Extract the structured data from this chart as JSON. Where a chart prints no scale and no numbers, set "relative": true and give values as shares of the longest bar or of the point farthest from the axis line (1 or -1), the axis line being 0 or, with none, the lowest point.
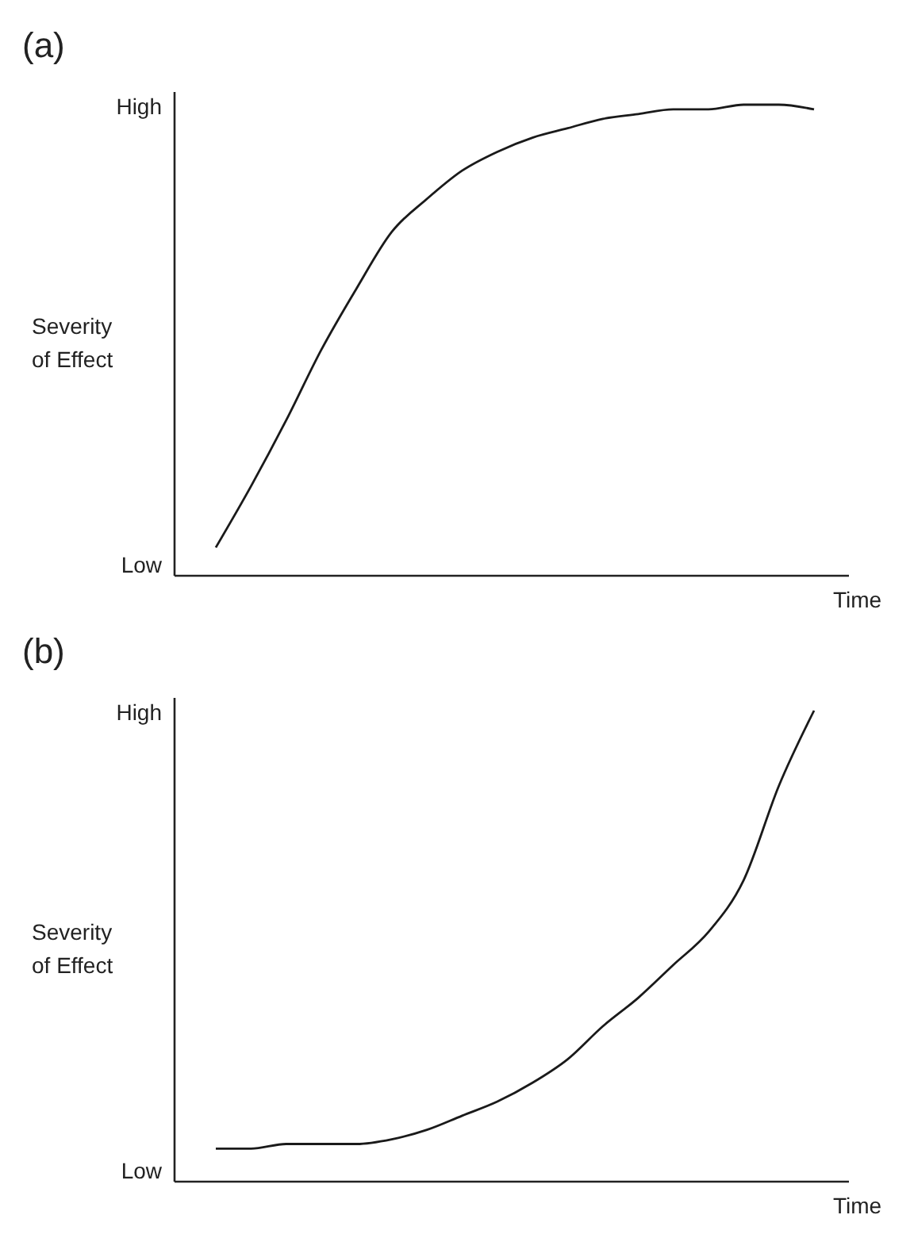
{
  "chart_data": [
    {
      "type": "line",
      "title": "(a)",
      "xlabel": "Time",
      "ylabel": "Severity of Effect",
      "relative": true,
      "annotations": [
        "High",
        "Low"
      ],
      "categories": [
        null,
        null,
        null,
        null,
        null,
        null,
        null,
        null,
        null,
        null,
        null,
        null,
        null,
        null,
        null,
        null,
        null,
        null
      ],
      "series": [
        {
          "color": "#1a1a1a",
          "values": [
            0.06,
            0.19,
            0.33,
            0.48,
            0.61,
            0.73,
            0.8,
            0.86,
            0.9,
            0.93,
            0.95,
            0.97,
            0.98,
            0.99,
            0.99,
            1.0,
            1.0,
            0.99
          ]
        }
      ]
    },
    {
      "type": "line",
      "title": "(b)",
      "xlabel": "Time",
      "ylabel": "Severity of Effect",
      "relative": true,
      "annotations": [
        "High",
        "Low"
      ],
      "categories": [
        null,
        null,
        null,
        null,
        null,
        null,
        null,
        null,
        null,
        null,
        null,
        null,
        null,
        null,
        null,
        null,
        null,
        null
      ],
      "series": [
        {
          "color": "#1a1a1a",
          "values": [
            0.07,
            0.07,
            0.08,
            0.08,
            0.08,
            0.09,
            0.11,
            0.14,
            0.17,
            0.21,
            0.26,
            0.33,
            0.39,
            0.46,
            0.53,
            0.64,
            0.84,
            1.0
          ]
        }
      ]
    }
  ]
}
